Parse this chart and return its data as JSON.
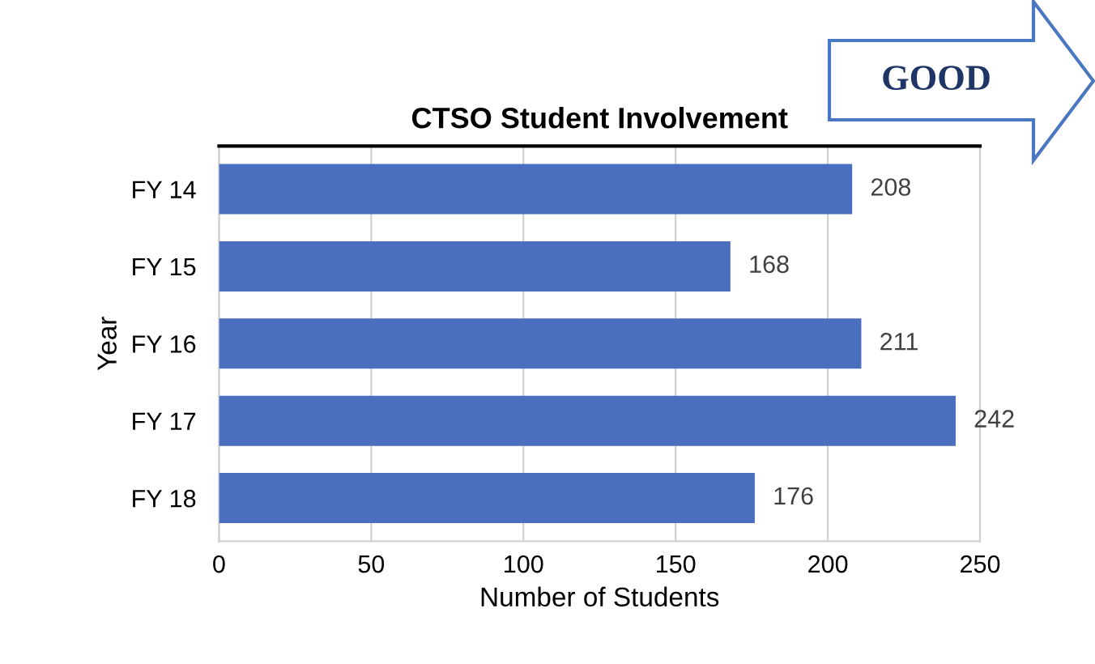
{
  "chart_data": {
    "type": "bar",
    "orientation": "horizontal",
    "title": "CTSO Student Involvement",
    "xlabel": "Number of Students",
    "ylabel": "Year",
    "categories": [
      "FY 14",
      "FY 15",
      "FY 16",
      "FY 17",
      "FY 18"
    ],
    "values": [
      208,
      168,
      211,
      242,
      176
    ],
    "color": "#4a6fbe",
    "xlim": [
      0,
      250
    ],
    "xticks": [
      0,
      50,
      100,
      150,
      200,
      250
    ],
    "grid": "x",
    "data_labels": true,
    "annotations": [
      "GOOD"
    ]
  }
}
